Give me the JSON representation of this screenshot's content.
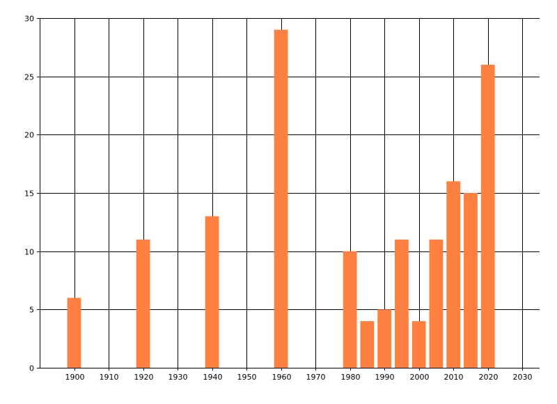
{
  "chart_data": {
    "type": "bar",
    "x": [
      1900,
      1920,
      1940,
      1960,
      1980,
      1985,
      1990,
      1995,
      2000,
      2005,
      2010,
      2015,
      2020
    ],
    "values": [
      6,
      11,
      13,
      29,
      10,
      4,
      5,
      11,
      4,
      11,
      16,
      15,
      26
    ],
    "xlim": [
      1890,
      2035
    ],
    "ylim": [
      0,
      30
    ],
    "x_ticks": [
      1900,
      1910,
      1920,
      1930,
      1940,
      1950,
      1960,
      1970,
      1980,
      1990,
      2000,
      2010,
      2020,
      2030
    ],
    "y_ticks": [
      0,
      5,
      10,
      15,
      20,
      25,
      30
    ],
    "x_tick_labels": [
      "1900",
      "1910",
      "1920",
      "1930",
      "1940",
      "1950",
      "1960",
      "1970",
      "1980",
      "1990",
      "2000",
      "2010",
      "2020",
      "2030"
    ],
    "y_tick_labels": [
      "0",
      "5",
      "10",
      "15",
      "20",
      "25",
      "30"
    ],
    "bar_width_years": 4,
    "grid": true,
    "bar_color": "#ff8040",
    "grid_color": "#000000"
  }
}
